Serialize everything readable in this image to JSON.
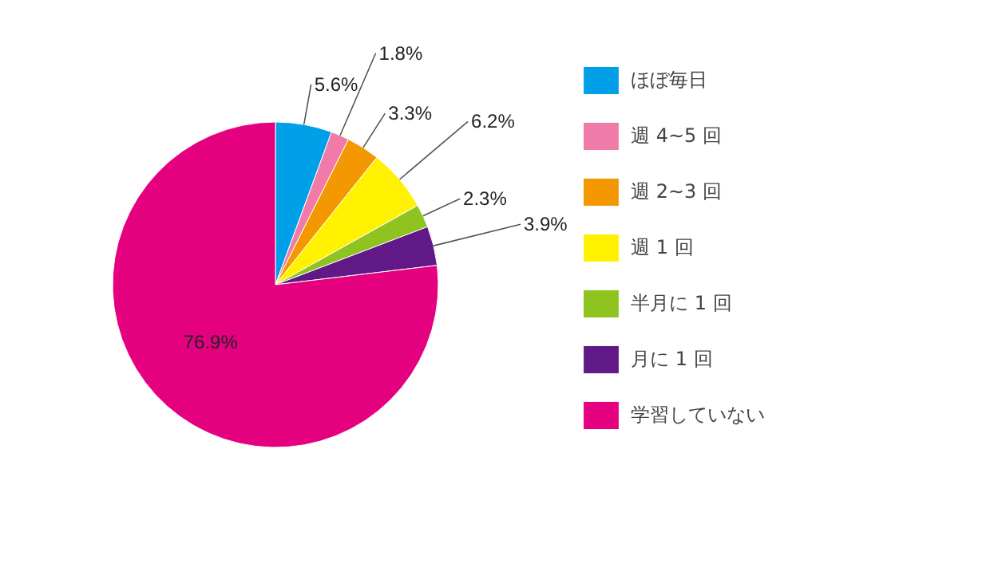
{
  "chart_data": {
    "type": "pie",
    "categories": [
      "ほぼ毎日",
      "週 4~5 回",
      "週 2~3 回",
      "週 1 回",
      "半月に 1 回",
      "月に 1 回",
      "学習していない"
    ],
    "values": [
      5.6,
      1.8,
      3.3,
      6.2,
      2.3,
      3.9,
      76.9
    ],
    "value_labels": [
      "5.6%",
      "1.8%",
      "3.3%",
      "6.2%",
      "2.3%",
      "3.9%",
      "76.9%"
    ],
    "colors": [
      "#00a0e9",
      "#f07aa8",
      "#f39800",
      "#fff100",
      "#8fc31f",
      "#601986",
      "#e4007f"
    ],
    "legend": "right"
  }
}
